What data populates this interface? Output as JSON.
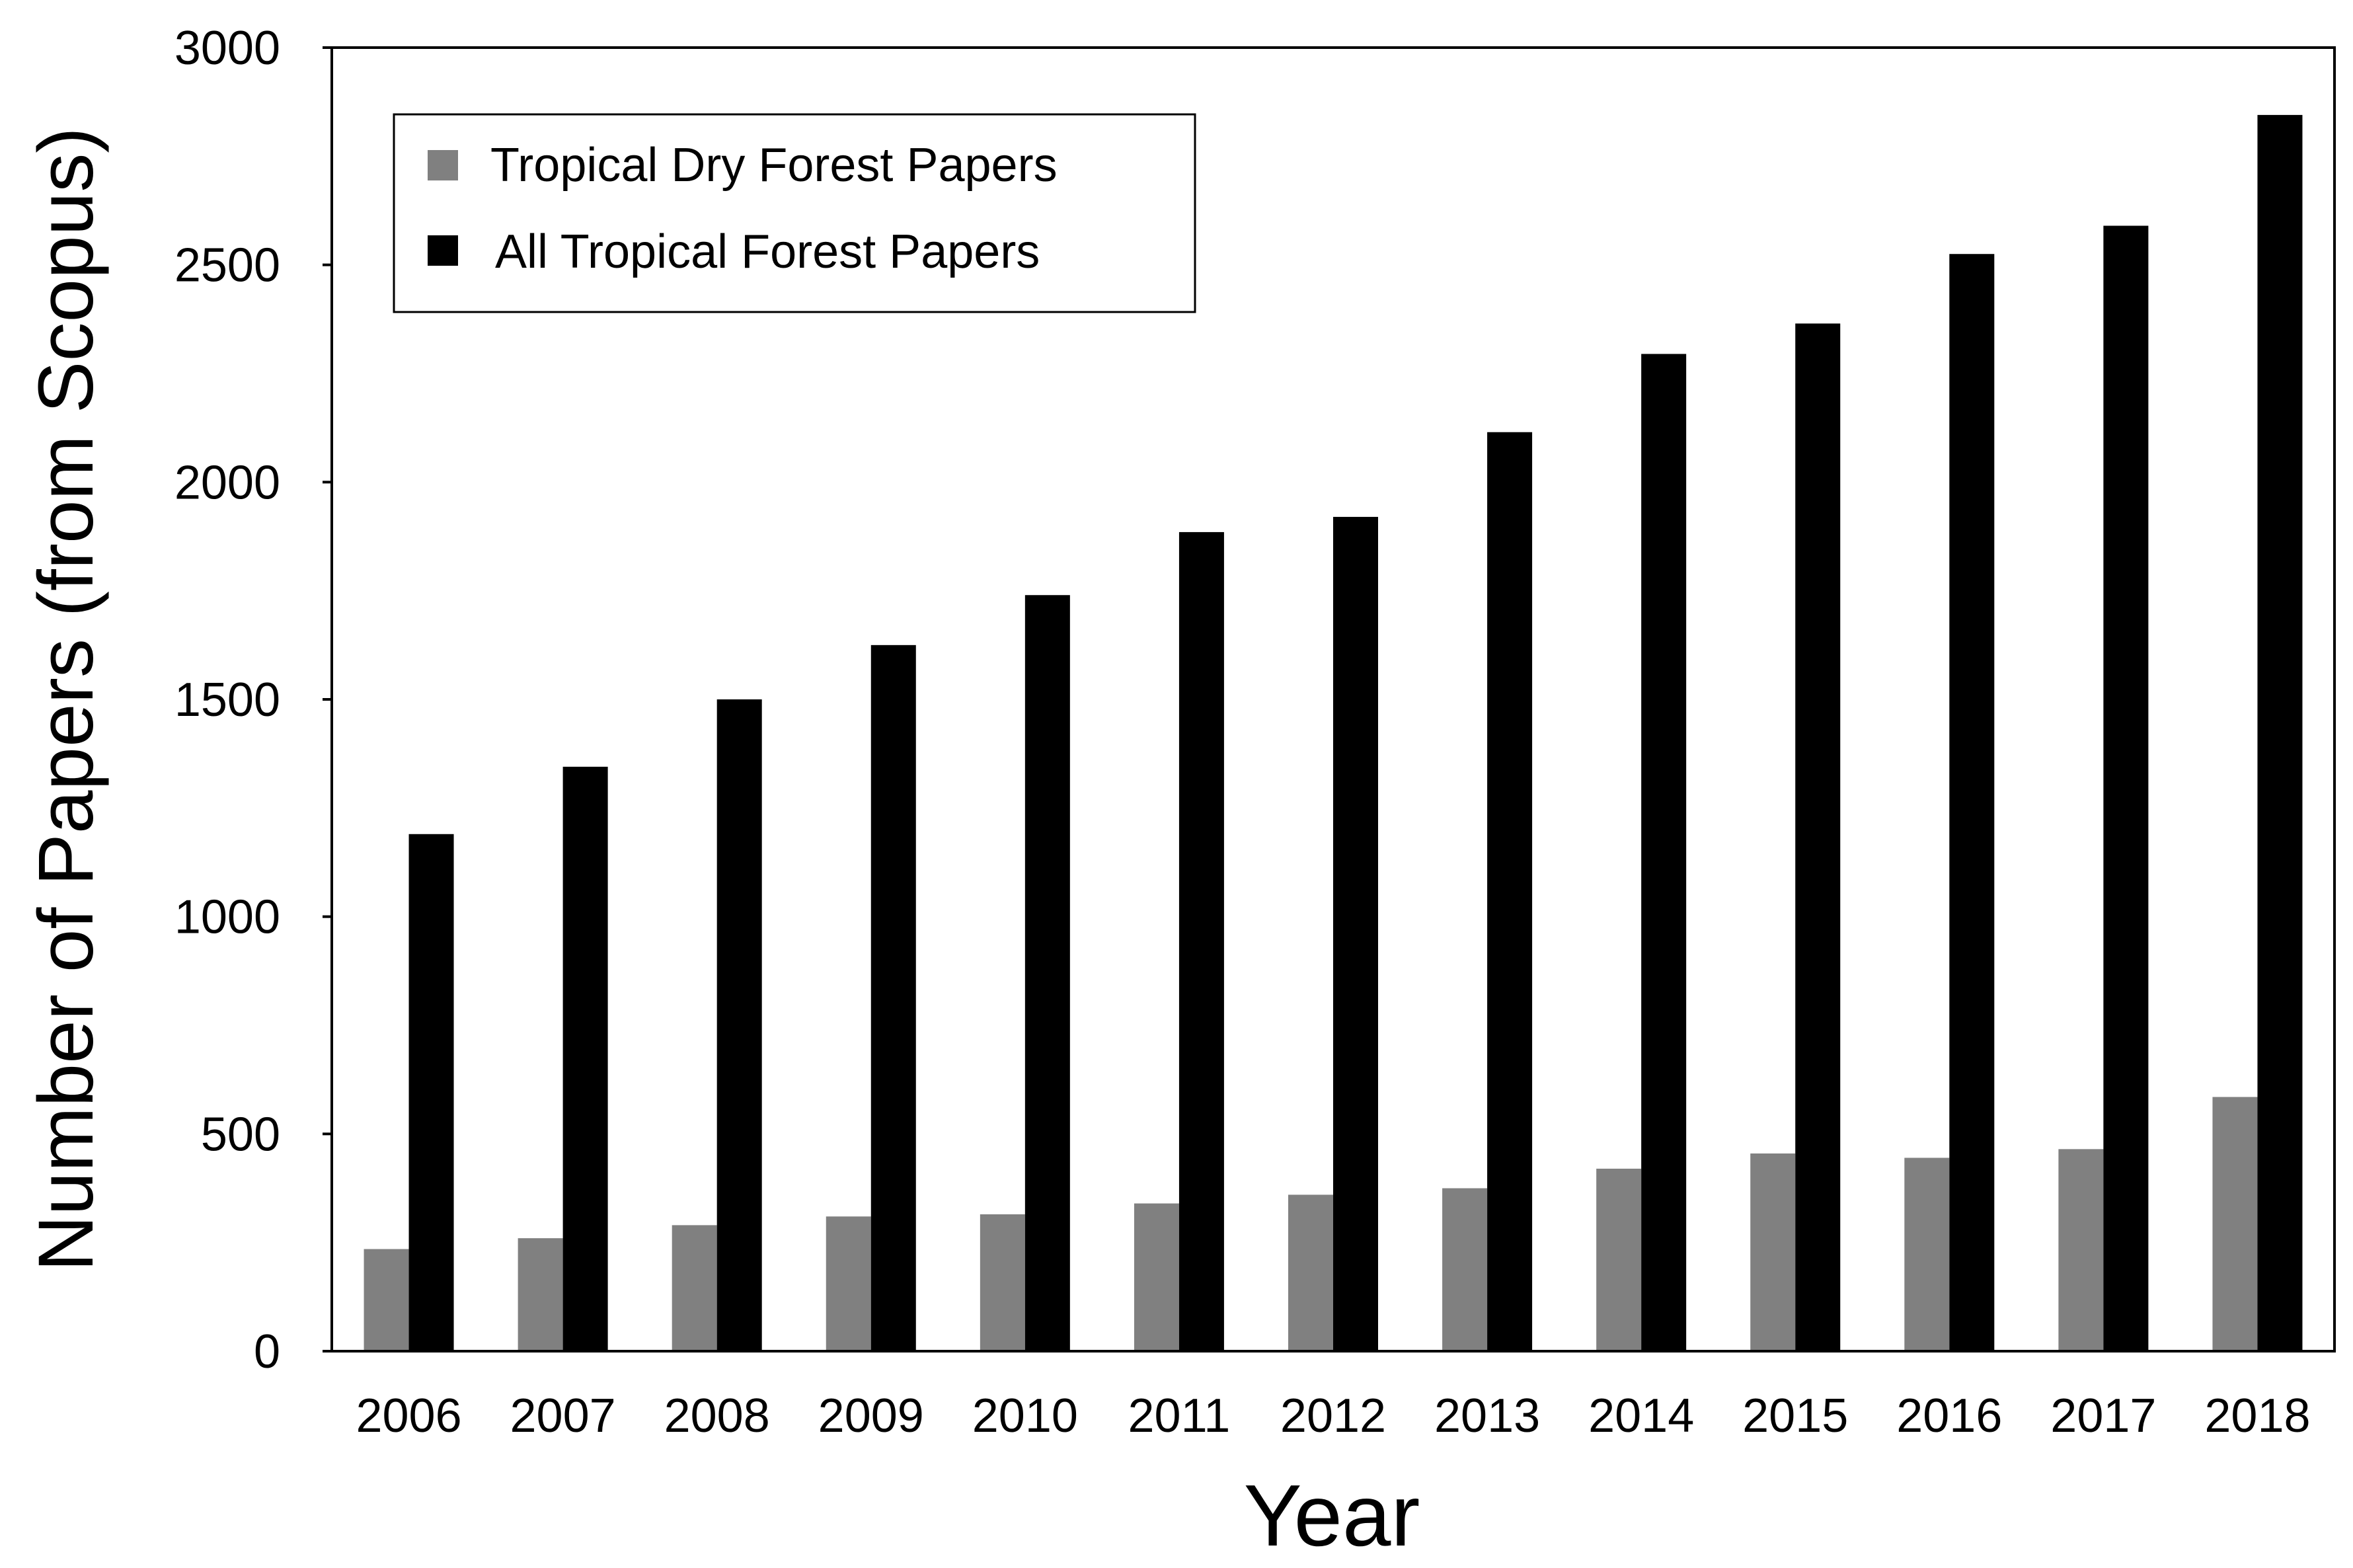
{
  "chart_data": {
    "type": "bar",
    "title": "",
    "xlabel": "Year",
    "ylabel": "Number of Papers (from Scopus)",
    "ylim": [
      0,
      3000
    ],
    "yticks": [
      "0",
      "500",
      "1000",
      "1500",
      "2000",
      "2500",
      "3000"
    ],
    "categories": [
      "2006",
      "2007",
      "2008",
      "2009",
      "2010",
      "2011",
      "2012",
      "2013",
      "2014",
      "2015",
      "2016",
      "2017",
      "2018"
    ],
    "series": [
      {
        "name": "Tropical Dry Forest Papers",
        "color": "#808080",
        "values": [
          235,
          260,
          290,
          310,
          315,
          340,
          360,
          375,
          420,
          455,
          445,
          465,
          585
        ]
      },
      {
        "name": "All Tropical Forest Papers",
        "color": "#000000",
        "values": [
          1190,
          1345,
          1500,
          1625,
          1740,
          1885,
          1920,
          2115,
          2295,
          2365,
          2525,
          2590,
          2845
        ]
      }
    ],
    "legend": {
      "position": "top-left",
      "labels": [
        "Tropical Dry Forest Papers",
        "All Tropical Forest Papers"
      ]
    },
    "grid": false
  }
}
